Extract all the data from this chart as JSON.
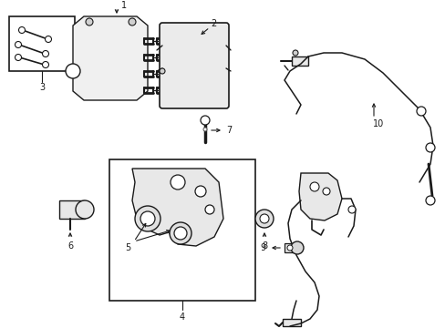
{
  "bg_color": "#ffffff",
  "lc": "#1a1a1a",
  "fig_w": 4.89,
  "fig_h": 3.6,
  "dpi": 100
}
